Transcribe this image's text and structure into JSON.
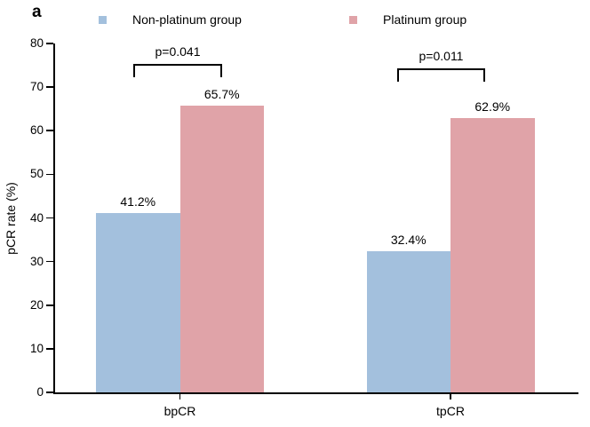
{
  "figure": {
    "panel_label": "a",
    "background": "#ffffff",
    "text_color": "#000000"
  },
  "chart_data": {
    "type": "bar",
    "title": "",
    "categories": [
      "bpCR",
      "tpCR"
    ],
    "series": [
      {
        "name": "Non-platinum group",
        "color": "#a3c0dd",
        "values": [
          41.2,
          32.4
        ],
        "labels": [
          "41.2%",
          "32.4%"
        ]
      },
      {
        "name": "Platinum group",
        "color": "#e0a3a8",
        "values": [
          65.7,
          62.9
        ],
        "labels": [
          "65.7%",
          "62.9%"
        ]
      }
    ],
    "annotations": [
      {
        "category": "bpCR",
        "label": "p=0.041"
      },
      {
        "category": "tpCR",
        "label": "p=0.011"
      }
    ],
    "xlabel": "",
    "ylabel": "pCR rate (%)",
    "ylim": [
      0,
      80
    ],
    "yticks": [
      0,
      10,
      20,
      30,
      40,
      50,
      60,
      70,
      80
    ],
    "grid": false,
    "legend_position": "top",
    "axis_color": "#000000"
  }
}
